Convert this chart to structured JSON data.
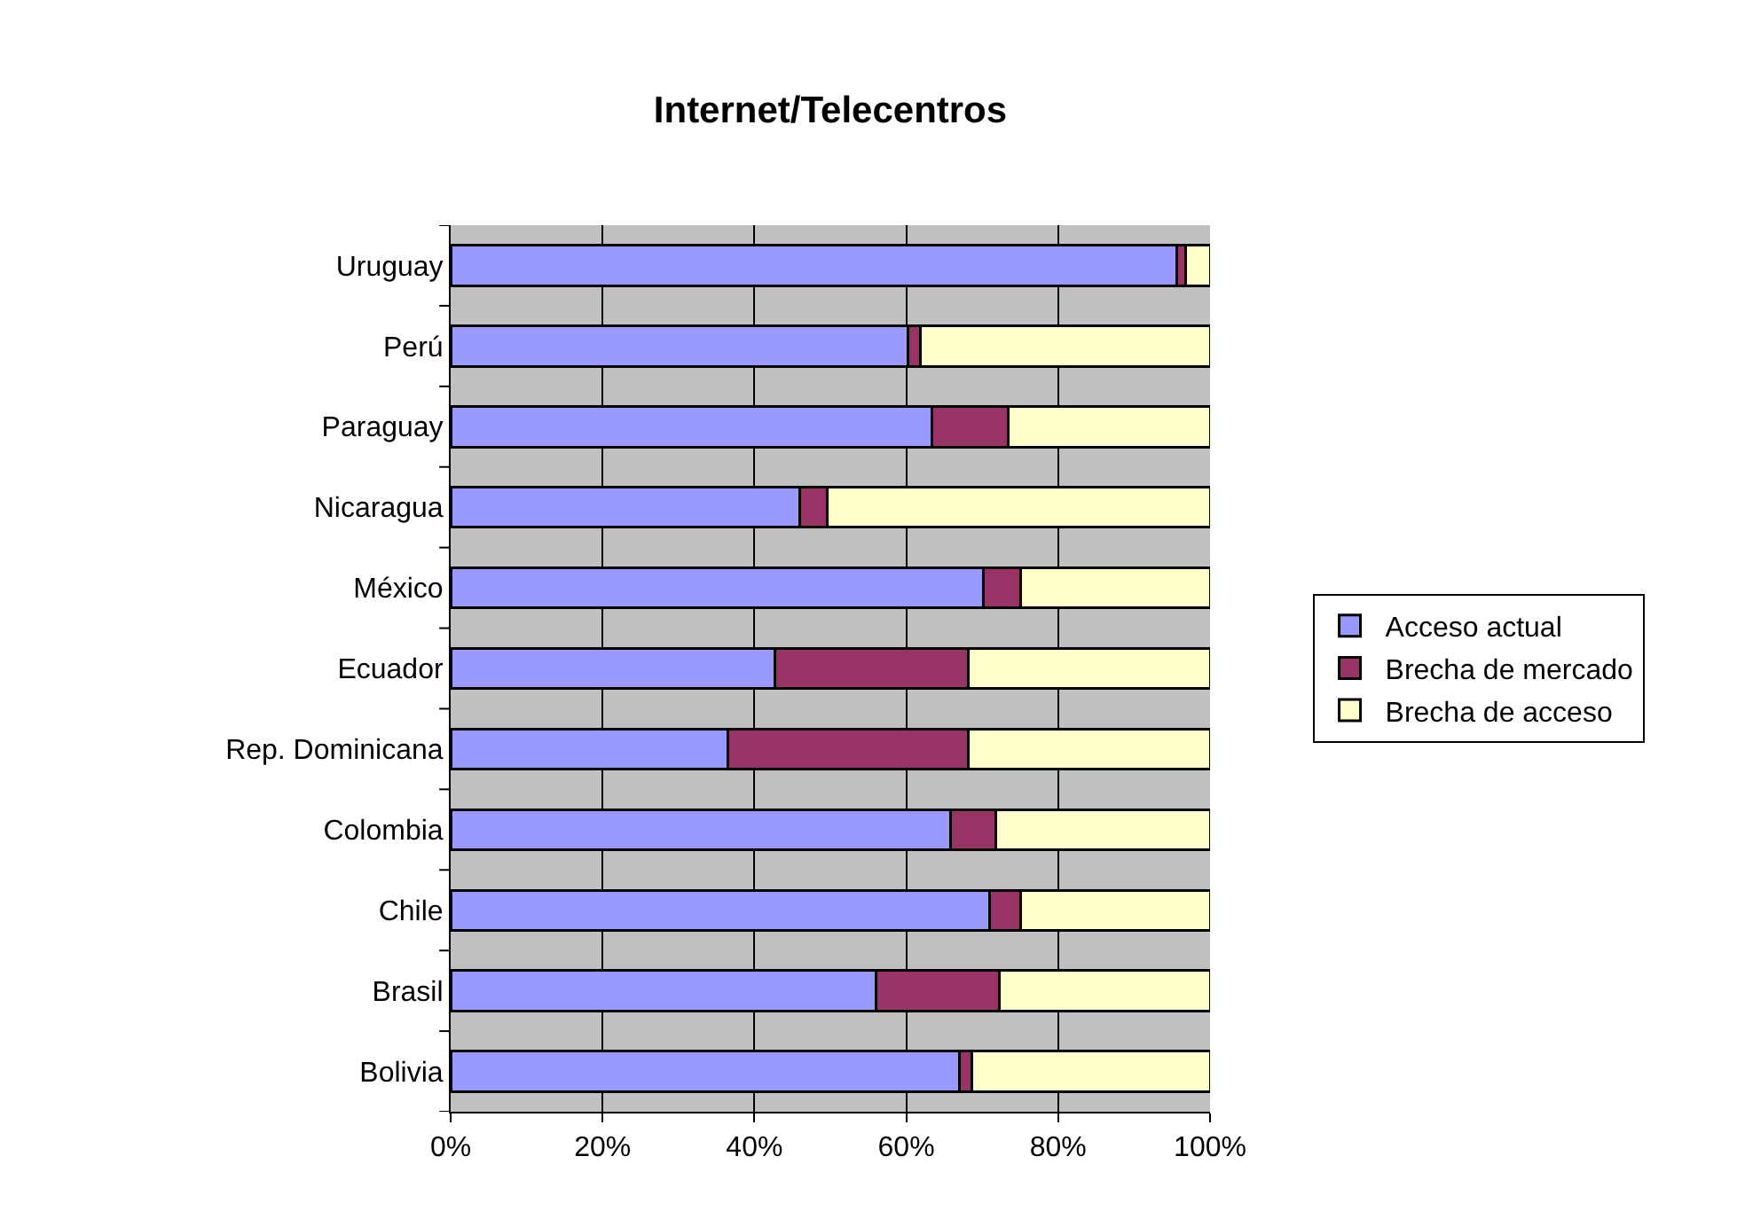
{
  "chart_data": {
    "type": "bar",
    "title": "Internet/Telecentros",
    "orientation": "horizontal",
    "stacked": true,
    "categories": [
      "Uruguay",
      "Perú",
      "Paraguay",
      "Nicaragua",
      "México",
      "Ecuador",
      "Rep. Dominicana",
      "Colombia",
      "Chile",
      "Brasil",
      "Bolivia"
    ],
    "series": [
      {
        "name": "Acceso actual",
        "color": "#9999ff",
        "values": [
          95.6,
          60.2,
          63.4,
          46.0,
          70.1,
          42.7,
          36.5,
          65.8,
          71.0,
          56.0,
          67.0
        ]
      },
      {
        "name": "Brecha de mercado",
        "color": "#993366",
        "values": [
          1.2,
          1.6,
          10.0,
          3.6,
          4.9,
          25.5,
          31.7,
          6.0,
          4.0,
          16.2,
          1.6
        ]
      },
      {
        "name": "Brecha de acceso",
        "color": "#ffffcc",
        "values": [
          3.2,
          38.2,
          26.6,
          50.4,
          25.0,
          31.8,
          31.8,
          28.2,
          25.0,
          27.8,
          31.4
        ]
      }
    ],
    "xlim": [
      0,
      100
    ],
    "xticks": [
      {
        "value": 0,
        "label": "0%"
      },
      {
        "value": 20,
        "label": "20%"
      },
      {
        "value": 40,
        "label": "40%"
      },
      {
        "value": 60,
        "label": "60%"
      },
      {
        "value": 80,
        "label": "80%"
      },
      {
        "value": 100,
        "label": "100%"
      }
    ],
    "grid": "x",
    "legend": "right"
  }
}
